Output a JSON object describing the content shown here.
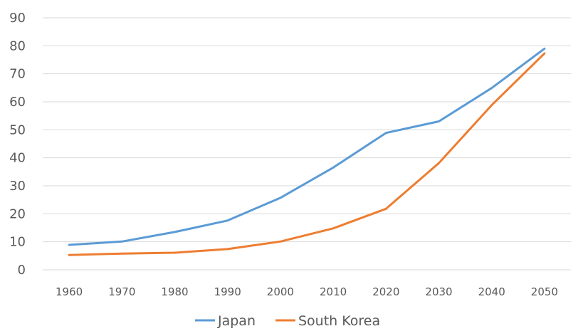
{
  "chart_data": {
    "type": "line",
    "x": [
      1960,
      1970,
      1980,
      1990,
      2000,
      2010,
      2020,
      2030,
      2040,
      2050
    ],
    "x_tick_labels": [
      "1960",
      "1970",
      "1980",
      "1990",
      "2000",
      "2010",
      "2020",
      "2030",
      "2040",
      "2050"
    ],
    "ylim": [
      0,
      90
    ],
    "y_ticks": [
      0,
      10,
      20,
      30,
      40,
      50,
      60,
      70,
      80,
      90
    ],
    "y_tick_labels": [
      "0",
      "10",
      "20",
      "30",
      "40",
      "50",
      "60",
      "70",
      "80",
      "90"
    ],
    "grid": true,
    "legend_position": "bottom",
    "title": "",
    "xlabel": "",
    "ylabel": "",
    "series": [
      {
        "name": "Japan",
        "color": "#5B9BD5",
        "values": [
          8.9,
          10.1,
          13.5,
          17.6,
          25.7,
          36.5,
          48.9,
          53.0,
          64.9,
          79.0
        ]
      },
      {
        "name": "South Korea",
        "color": "#ED7D31",
        "values": [
          5.3,
          5.8,
          6.1,
          7.4,
          10.1,
          14.8,
          21.8,
          38.1,
          58.8,
          77.3
        ]
      }
    ]
  }
}
